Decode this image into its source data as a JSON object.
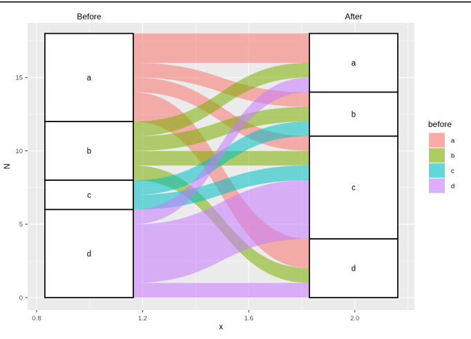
{
  "chart_data": {
    "type": "alluvial",
    "before_title": "Before",
    "after_title": "After",
    "xlabel": "x",
    "ylabel": "N",
    "x_ticks": [
      {
        "label": "0.8",
        "value": 0.8
      },
      {
        "label": "1.2",
        "value": 1.2
      },
      {
        "label": "1.6",
        "value": 1.6
      },
      {
        "label": "2.0",
        "value": 2.0
      }
    ],
    "y_ticks": [
      {
        "label": "0",
        "value": 0
      },
      {
        "label": "5",
        "value": 5
      },
      {
        "label": "10",
        "value": 10
      },
      {
        "label": "15",
        "value": 15
      }
    ],
    "ylim": [
      0,
      18
    ],
    "panel_bg": "#EBEBEB",
    "gridline_color": "#FFFFFF",
    "stratum_fill": "#FFFFFF",
    "stratum_stroke": "#000000",
    "flow_alpha": 0.55,
    "legend_key_alpha": 0.62,
    "colors": {
      "a": "#F8766D",
      "b": "#7CAE00",
      "c": "#00BFC4",
      "d": "#C77CFF"
    },
    "strata": {
      "before": [
        {
          "label": "a",
          "from": 12,
          "to": 18
        },
        {
          "label": "b",
          "from": 8,
          "to": 12
        },
        {
          "label": "c",
          "from": 6,
          "to": 8
        },
        {
          "label": "d",
          "from": 0,
          "to": 6
        }
      ],
      "after": [
        {
          "label": "a",
          "from": 14,
          "to": 18
        },
        {
          "label": "b",
          "from": 11,
          "to": 14
        },
        {
          "label": "c",
          "from": 4,
          "to": 11
        },
        {
          "label": "d",
          "from": 0,
          "to": 4
        }
      ]
    },
    "flows": [
      {
        "before": "a",
        "after": "a",
        "n": 2,
        "src": [
          16,
          18
        ],
        "dst": [
          16,
          18
        ]
      },
      {
        "before": "a",
        "after": "b",
        "n": 1,
        "src": [
          15,
          16
        ],
        "dst": [
          13,
          14
        ]
      },
      {
        "before": "a",
        "after": "c",
        "n": 1,
        "src": [
          14,
          15
        ],
        "dst": [
          10,
          11
        ]
      },
      {
        "before": "a",
        "after": "d",
        "n": 2,
        "src": [
          12,
          14
        ],
        "dst": [
          2,
          4
        ]
      },
      {
        "before": "b",
        "after": "a",
        "n": 1,
        "src": [
          11,
          12
        ],
        "dst": [
          15,
          16
        ]
      },
      {
        "before": "b",
        "after": "b",
        "n": 1,
        "src": [
          10,
          11
        ],
        "dst": [
          12,
          13
        ]
      },
      {
        "before": "b",
        "after": "c",
        "n": 1,
        "src": [
          9,
          10
        ],
        "dst": [
          9,
          10
        ]
      },
      {
        "before": "b",
        "after": "d",
        "n": 1,
        "src": [
          8,
          9
        ],
        "dst": [
          1,
          2
        ]
      },
      {
        "before": "c",
        "after": "b",
        "n": 1,
        "src": [
          7,
          8
        ],
        "dst": [
          11,
          12
        ]
      },
      {
        "before": "c",
        "after": "c",
        "n": 1,
        "src": [
          6,
          7
        ],
        "dst": [
          8,
          9
        ]
      },
      {
        "before": "d",
        "after": "a",
        "n": 1,
        "src": [
          5,
          6
        ],
        "dst": [
          14,
          15
        ]
      },
      {
        "before": "d",
        "after": "c",
        "n": 4,
        "src": [
          1,
          5
        ],
        "dst": [
          4,
          8
        ]
      },
      {
        "before": "d",
        "after": "d",
        "n": 1,
        "src": [
          0,
          1
        ],
        "dst": [
          0,
          1
        ]
      }
    ],
    "legend": {
      "title": "before",
      "entries": [
        {
          "label": "a",
          "color": "#F8766D"
        },
        {
          "label": "b",
          "color": "#7CAE00"
        },
        {
          "label": "c",
          "color": "#00BFC4"
        },
        {
          "label": "d",
          "color": "#C77CFF"
        }
      ]
    }
  }
}
